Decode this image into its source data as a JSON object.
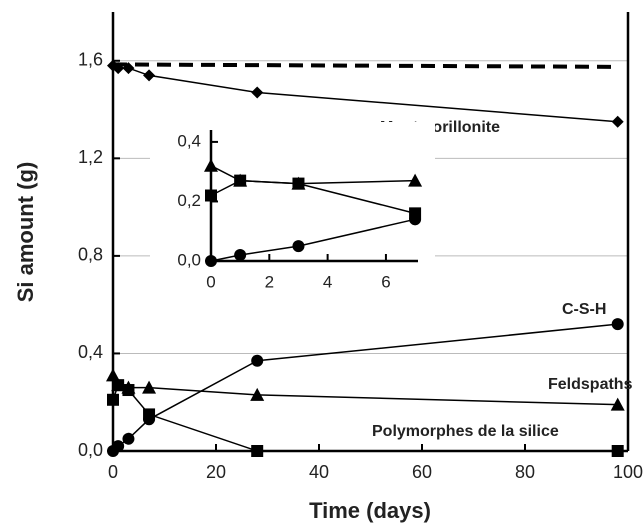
{
  "chart_data": [
    {
      "type": "line",
      "xlabel": "Time (days)",
      "ylabel": "Si amount (g)",
      "x": [
        0,
        1,
        3,
        7,
        28,
        98
      ],
      "xlim": [
        0,
        100
      ],
      "xticks": [
        0,
        20,
        40,
        60,
        80,
        100
      ],
      "ylim": [
        0,
        1.8
      ],
      "yticks": [
        {
          "value": 0,
          "label": "0,0"
        },
        {
          "value": 0.4,
          "label": "0,4"
        },
        {
          "value": 0.8,
          "label": "0,8"
        },
        {
          "value": 1.2,
          "label": "1,2"
        },
        {
          "value": 1.6,
          "label": "1,6"
        }
      ],
      "grid": true,
      "series": [
        {
          "name": "Montmorillonite",
          "color": "#000000",
          "marker": "diamond",
          "values": [
            1.58,
            1.57,
            1.57,
            1.54,
            1.47,
            1.35
          ]
        },
        {
          "name": "C-S-H",
          "color": "#000000",
          "marker": "circle",
          "values": [
            0,
            0.02,
            0.05,
            0.13,
            0.37,
            0.52
          ]
        },
        {
          "name": "Feldspaths",
          "color": "#000000",
          "marker": "triangle",
          "values": [
            0.31,
            0.27,
            0.26,
            0.26,
            0.23,
            0.19
          ]
        },
        {
          "name": "Polymorphes de la silice",
          "color": "#000000",
          "marker": "square",
          "values": [
            0.21,
            0.27,
            0.25,
            0.15,
            0,
            0
          ]
        },
        {
          "color": "#000000",
          "style": "dashed",
          "x": [
            0,
            98
          ],
          "values": [
            1.585,
            1.575
          ]
        }
      ]
    },
    {
      "type": "line",
      "x": [
        0,
        1,
        3,
        7
      ],
      "xlim": [
        0,
        7.1
      ],
      "xticks": [
        0,
        2,
        4,
        6
      ],
      "ylim": [
        0,
        0.44
      ],
      "yticks": [
        {
          "value": 0,
          "label": "0,0"
        },
        {
          "value": 0.2,
          "label": "0,2"
        },
        {
          "value": 0.4,
          "label": "0,4"
        }
      ],
      "series": [
        {
          "color": "#000000",
          "marker": "triangle",
          "values": [
            0.32,
            0.27,
            0.26,
            0.27
          ]
        },
        {
          "color": "#000000",
          "marker": "square",
          "values": [
            0.22,
            0.27,
            0.26,
            0.16
          ]
        },
        {
          "color": "#000000",
          "marker": "circle",
          "values": [
            0,
            0.02,
            0.05,
            0.14
          ]
        }
      ]
    }
  ]
}
